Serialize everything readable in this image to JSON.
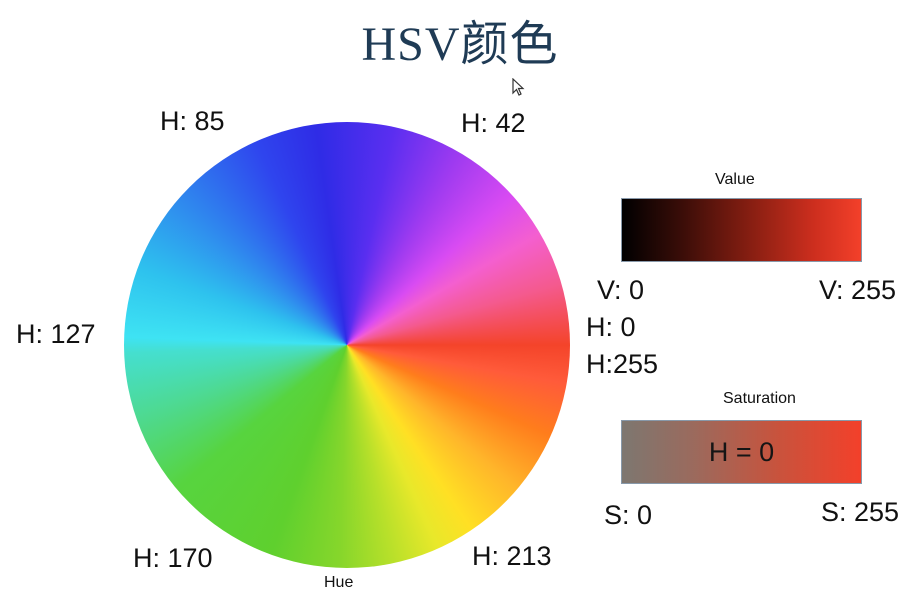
{
  "title": "HSV颜色",
  "wheel": {
    "caption": "Hue",
    "labels": {
      "h85": "H: 85",
      "h42": "H: 42",
      "h127": "H: 127",
      "h0": "H: 0",
      "h255": "H:255",
      "h170": "H: 170",
      "h213": "H: 213"
    }
  },
  "value_bar": {
    "title": "Value",
    "min_label": "V: 0",
    "max_label": "V: 255",
    "colors": [
      "#000000",
      "#f3402a"
    ]
  },
  "saturation_bar": {
    "title": "Saturation",
    "center_label": "H = 0",
    "min_label": "S: 0",
    "max_label": "S: 255",
    "colors": [
      "#7d7770",
      "#f3402a"
    ]
  },
  "colors": {
    "title": "#1f3b55"
  }
}
